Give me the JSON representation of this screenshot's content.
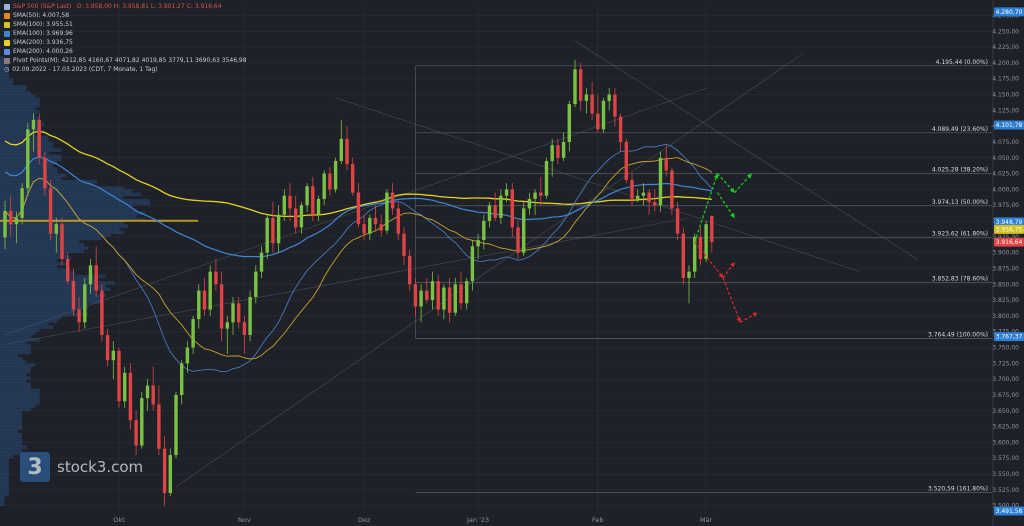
{
  "legend": {
    "title": "S&P 500 (S&P Last)",
    "ohlc": "O: 3.958,00  H: 3.958,81  L: 3.901,27  C: 3.916,64",
    "items": [
      {
        "label": "SMA(50): 4.007,58",
        "color": "#e8891f"
      },
      {
        "label": "SMA(100): 3.955,51",
        "color": "#d7c219"
      },
      {
        "label": "EMA(100): 3.969,96",
        "color": "#3f87d6"
      },
      {
        "label": "SMA(200): 3.936,75",
        "color": "#e8d21f"
      },
      {
        "label": "EMA(200): 4.000,26",
        "color": "#5a8fe0"
      },
      {
        "label": "Pivot Points(M): 4212,85  4160,67  4071,82  4019,85  3779,11  3690,63  3546,98",
        "color": "#8a7a7a"
      }
    ],
    "period": "02.09.2022 - 17.03.2023   (CDT, 7 Monate, 1 Tag)"
  },
  "watermark": {
    "mark": "3",
    "text": "stock3.com"
  },
  "chart_data": {
    "type": "candlestick",
    "yaxis_side": "right",
    "ylim": [
      3490,
      4290
    ],
    "yticks": [
      3500,
      3525,
      3550,
      3575,
      3600,
      3625,
      3650,
      3675,
      3700,
      3725,
      3750,
      3775,
      3800,
      3825,
      3850,
      3875,
      3900,
      3925,
      3950,
      3975,
      4000,
      4025,
      4050,
      4075,
      4100,
      4125,
      4150,
      4175,
      4200,
      4225,
      4250,
      4275
    ],
    "ytick_labels": [
      "3.500,00",
      "3.525,00",
      "3.550,00",
      "3.575,00",
      "3.600,00",
      "3.625,00",
      "3.650,00",
      "3.675,00",
      "3.700,00",
      "3.725,00",
      "3.750,00",
      "3.775,00",
      "3.800,00",
      "3.825,00",
      "3.850,00",
      "3.875,00",
      "3.900,00",
      "3.925,00",
      "3.950,00",
      "3.975,00",
      "4.000,00",
      "4.025,00",
      "4.050,00",
      "4.075,00",
      "4.100,00",
      "4.125,00",
      "4.150,00",
      "4.175,00",
      "4.200,00",
      "4.225,00",
      "4.250,00",
      "4.275,00"
    ],
    "xlabels": [
      {
        "label": "Okt",
        "bar": 20
      },
      {
        "label": "Nov",
        "bar": 42
      },
      {
        "label": "Dez",
        "bar": 63
      },
      {
        "label": "Jan '23",
        "bar": 83
      },
      {
        "label": "Feb",
        "bar": 104
      },
      {
        "label": "Mär",
        "bar": 123
      }
    ],
    "price_tags": [
      {
        "value": 4280.7,
        "label": "4.280,70",
        "color": "#2c7fd4"
      },
      {
        "value": 4101.78,
        "label": "4.101,78",
        "color": "#2c7fd4"
      },
      {
        "value": 3948.79,
        "label": "3.948,79",
        "color": "#2c7fd4"
      },
      {
        "value": 3936.75,
        "label": "3.936,75",
        "color": "#d4c21f"
      },
      {
        "value": 3916.64,
        "label": "3.916,64",
        "color": "#e04343"
      },
      {
        "value": 3767.37,
        "label": "3.767,37",
        "color": "#2c7fd4"
      },
      {
        "value": 3491.58,
        "label": "3.491,58",
        "color": "#2c7fd4"
      }
    ],
    "fib_levels": [
      {
        "value": 4195.44,
        "label": "4.195,44 (0.00%)"
      },
      {
        "value": 4089.49,
        "label": "4.089,49 (23.60%)"
      },
      {
        "value": 4025.28,
        "label": "4.025,28 (38.20%)"
      },
      {
        "value": 3974.13,
        "label": "3.974,13 (50.00%)"
      },
      {
        "value": 3923.62,
        "label": "3.923,62 (61.80%)"
      },
      {
        "value": 3852.83,
        "label": "3.852,83 (78.60%)"
      },
      {
        "value": 3764.49,
        "label": "3.764,49 (100.00%)"
      },
      {
        "value": 3520.59,
        "label": "3.520,59 (161.80%)"
      }
    ],
    "candles": [
      [
        3924,
        3982,
        3905,
        3966
      ],
      [
        3966,
        3990,
        3925,
        3945
      ],
      [
        3945,
        3965,
        3915,
        3955
      ],
      [
        3955,
        4010,
        3945,
        4002
      ],
      [
        4002,
        4105,
        3990,
        4095
      ],
      [
        4095,
        4120,
        4060,
        4110
      ],
      [
        4110,
        4120,
        4040,
        4050
      ],
      [
        4050,
        4060,
        3990,
        4002
      ],
      [
        4002,
        4015,
        3920,
        3930
      ],
      [
        3930,
        3955,
        3900,
        3945
      ],
      [
        3945,
        3955,
        3880,
        3890
      ],
      [
        3890,
        3900,
        3850,
        3855
      ],
      [
        3855,
        3875,
        3800,
        3810
      ],
      [
        3810,
        3830,
        3775,
        3790
      ],
      [
        3790,
        3860,
        3780,
        3850
      ],
      [
        3850,
        3890,
        3835,
        3880
      ],
      [
        3880,
        3910,
        3830,
        3840
      ],
      [
        3840,
        3850,
        3760,
        3770
      ],
      [
        3770,
        3780,
        3720,
        3730
      ],
      [
        3730,
        3760,
        3700,
        3745
      ],
      [
        3745,
        3750,
        3655,
        3665
      ],
      [
        3665,
        3720,
        3655,
        3710
      ],
      [
        3710,
        3725,
        3620,
        3635
      ],
      [
        3635,
        3650,
        3580,
        3595
      ],
      [
        3595,
        3680,
        3590,
        3670
      ],
      [
        3670,
        3700,
        3650,
        3690
      ],
      [
        3690,
        3720,
        3650,
        3660
      ],
      [
        3660,
        3690,
        3580,
        3590
      ],
      [
        3590,
        3610,
        3500,
        3520
      ],
      [
        3520,
        3590,
        3515,
        3580
      ],
      [
        3580,
        3680,
        3575,
        3675
      ],
      [
        3675,
        3730,
        3660,
        3725
      ],
      [
        3725,
        3760,
        3710,
        3750
      ],
      [
        3750,
        3800,
        3740,
        3795
      ],
      [
        3795,
        3850,
        3780,
        3840
      ],
      [
        3840,
        3860,
        3800,
        3810
      ],
      [
        3810,
        3880,
        3800,
        3870
      ],
      [
        3870,
        3890,
        3840,
        3850
      ],
      [
        3850,
        3870,
        3760,
        3780
      ],
      [
        3780,
        3800,
        3740,
        3790
      ],
      [
        3790,
        3830,
        3770,
        3820
      ],
      [
        3820,
        3830,
        3780,
        3790
      ],
      [
        3790,
        3800,
        3740,
        3770
      ],
      [
        3770,
        3840,
        3760,
        3830
      ],
      [
        3830,
        3880,
        3820,
        3870
      ],
      [
        3870,
        3910,
        3860,
        3900
      ],
      [
        3900,
        3960,
        3890,
        3955
      ],
      [
        3955,
        3980,
        3900,
        3915
      ],
      [
        3915,
        3975,
        3900,
        3960
      ],
      [
        3960,
        4000,
        3950,
        3990
      ],
      [
        3990,
        4010,
        3950,
        3970
      ],
      [
        3970,
        3990,
        3930,
        3940
      ],
      [
        3940,
        3980,
        3930,
        3975
      ],
      [
        3975,
        4010,
        3965,
        4005
      ],
      [
        4005,
        4020,
        3950,
        3960
      ],
      [
        3960,
        3990,
        3950,
        3985
      ],
      [
        3985,
        4030,
        3975,
        4025
      ],
      [
        4025,
        4035,
        3990,
        4000
      ],
      [
        4000,
        4050,
        3995,
        4045
      ],
      [
        4045,
        4110,
        4040,
        4080
      ],
      [
        4080,
        4100,
        4030,
        4040
      ],
      [
        4040,
        4050,
        3990,
        3995
      ],
      [
        3995,
        4010,
        3940,
        3945
      ],
      [
        3945,
        3960,
        3920,
        3930
      ],
      [
        3930,
        3960,
        3920,
        3955
      ],
      [
        3955,
        3975,
        3935,
        3945
      ],
      [
        3945,
        3960,
        3925,
        3935
      ],
      [
        3935,
        4000,
        3930,
        3995
      ],
      [
        3995,
        4010,
        3960,
        3970
      ],
      [
        3970,
        3980,
        3920,
        3930
      ],
      [
        3930,
        3940,
        3880,
        3895
      ],
      [
        3895,
        3905,
        3840,
        3850
      ],
      [
        3850,
        3860,
        3800,
        3815
      ],
      [
        3815,
        3850,
        3790,
        3840
      ],
      [
        3840,
        3860,
        3820,
        3825
      ],
      [
        3825,
        3870,
        3810,
        3855
      ],
      [
        3855,
        3865,
        3800,
        3810
      ],
      [
        3810,
        3850,
        3795,
        3845
      ],
      [
        3845,
        3860,
        3790,
        3805
      ],
      [
        3805,
        3860,
        3800,
        3850
      ],
      [
        3850,
        3870,
        3810,
        3820
      ],
      [
        3820,
        3860,
        3810,
        3855
      ],
      [
        3855,
        3920,
        3840,
        3910
      ],
      [
        3910,
        3930,
        3890,
        3920
      ],
      [
        3920,
        3960,
        3905,
        3950
      ],
      [
        3950,
        3980,
        3940,
        3975
      ],
      [
        3975,
        3995,
        3950,
        3955
      ],
      [
        3955,
        4000,
        3945,
        3990
      ],
      [
        3990,
        4010,
        3980,
        4000
      ],
      [
        4000,
        4010,
        3925,
        3940
      ],
      [
        3940,
        3950,
        3890,
        3900
      ],
      [
        3900,
        3980,
        3895,
        3970
      ],
      [
        3970,
        3995,
        3960,
        3985
      ],
      [
        3985,
        4000,
        3960,
        3995
      ],
      [
        3995,
        4020,
        3975,
        3990
      ],
      [
        3990,
        4050,
        3985,
        4045
      ],
      [
        4045,
        4080,
        4020,
        4070
      ],
      [
        4070,
        4080,
        4040,
        4050
      ],
      [
        4050,
        4090,
        4045,
        4075
      ],
      [
        4075,
        4140,
        4060,
        4135
      ],
      [
        4135,
        4205,
        4130,
        4190
      ],
      [
        4190,
        4200,
        4125,
        4140
      ],
      [
        4140,
        4160,
        4120,
        4150
      ],
      [
        4150,
        4170,
        4110,
        4120
      ],
      [
        4120,
        4150,
        4090,
        4095
      ],
      [
        4095,
        4145,
        4090,
        4140
      ],
      [
        4140,
        4160,
        4125,
        4150
      ],
      [
        4150,
        4160,
        4100,
        4115
      ],
      [
        4115,
        4120,
        4060,
        4075
      ],
      [
        4075,
        4080,
        4010,
        4015
      ],
      [
        4015,
        4025,
        3975,
        3985
      ],
      [
        3985,
        4000,
        3980,
        3990
      ],
      [
        3990,
        4010,
        3975,
        3995
      ],
      [
        3995,
        4000,
        3960,
        3980
      ],
      [
        3980,
        4000,
        3965,
        3975
      ],
      [
        3975,
        4060,
        3965,
        4050
      ],
      [
        4050,
        4070,
        4020,
        4030
      ],
      [
        4030,
        4035,
        3960,
        3970
      ],
      [
        3970,
        3980,
        3920,
        3930
      ],
      [
        3930,
        3940,
        3850,
        3860
      ],
      [
        3860,
        3880,
        3820,
        3870
      ],
      [
        3870,
        3930,
        3860,
        3925
      ],
      [
        3925,
        3940,
        3880,
        3890
      ],
      [
        3890,
        3950,
        3885,
        3945
      ],
      [
        3958,
        3959,
        3901,
        3917
      ]
    ],
    "scenario_arrows": [
      {
        "from": [
          121,
          3917
        ],
        "to": [
          125,
          4025
        ],
        "color": "#19d219"
      },
      {
        "from": [
          125,
          4025
        ],
        "to": [
          128,
          3995
        ],
        "color": "#19d219"
      },
      {
        "from": [
          128,
          3995
        ],
        "to": [
          131,
          4025
        ],
        "color": "#19d219"
      },
      {
        "from": [
          125,
          3995
        ],
        "to": [
          128,
          3955
        ],
        "color": "#19d219"
      },
      {
        "from": [
          121,
          3917
        ],
        "to": [
          126,
          3860
        ],
        "color": "#e02a2a"
      },
      {
        "from": [
          126,
          3860
        ],
        "to": [
          128,
          3885
        ],
        "color": "#e02a2a"
      },
      {
        "from": [
          126,
          3860
        ],
        "to": [
          129,
          3790
        ],
        "color": "#e02a2a"
      },
      {
        "from": [
          129,
          3790
        ],
        "to": [
          132,
          3805
        ],
        "color": "#e02a2a"
      }
    ]
  }
}
